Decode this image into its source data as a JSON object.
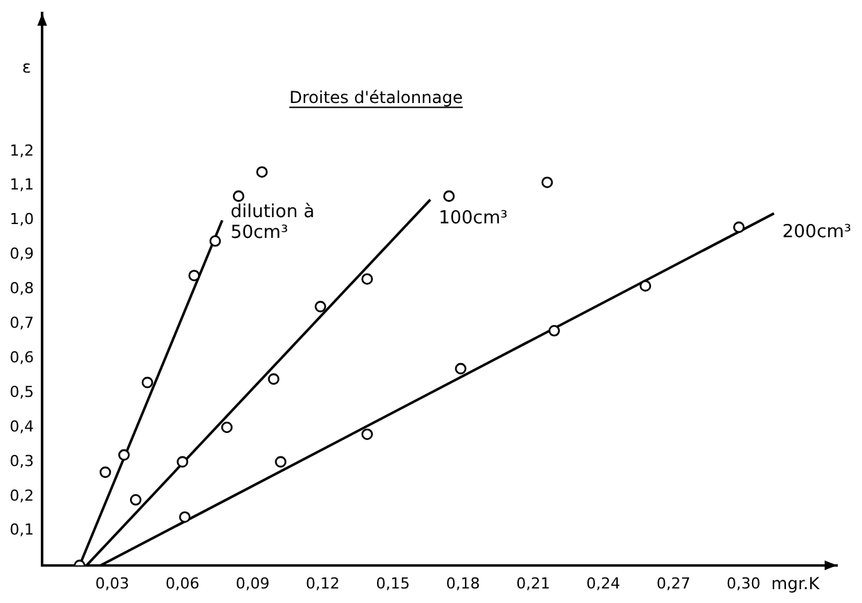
{
  "chart_data": {
    "type": "scatter",
    "title": "Droites d'étalonnage",
    "xlabel": "mgr.K",
    "ylabel": "ε",
    "xlim": [
      0,
      0.34
    ],
    "ylim": [
      0,
      1.6
    ],
    "xticks": [
      {
        "value": 0.03,
        "label": "0,03"
      },
      {
        "value": 0.06,
        "label": "0,06"
      },
      {
        "value": 0.09,
        "label": "0,09"
      },
      {
        "value": 0.12,
        "label": "0,12"
      },
      {
        "value": 0.15,
        "label": "0,15"
      },
      {
        "value": 0.18,
        "label": "0,18"
      },
      {
        "value": 0.21,
        "label": "0,21"
      },
      {
        "value": 0.24,
        "label": "0,24"
      },
      {
        "value": 0.27,
        "label": "0,27"
      },
      {
        "value": 0.3,
        "label": "0,30"
      }
    ],
    "yticks": [
      {
        "value": 0.1,
        "label": "0,1"
      },
      {
        "value": 0.2,
        "label": "0,2"
      },
      {
        "value": 0.3,
        "label": "0,3"
      },
      {
        "value": 0.4,
        "label": "0,4"
      },
      {
        "value": 0.5,
        "label": "0,5"
      },
      {
        "value": 0.6,
        "label": "0,6"
      },
      {
        "value": 0.7,
        "label": "0,7"
      },
      {
        "value": 0.8,
        "label": "0,8"
      },
      {
        "value": 0.9,
        "label": "0,9"
      },
      {
        "value": 1.0,
        "label": "1,0"
      },
      {
        "value": 1.1,
        "label": "1,1"
      },
      {
        "value": 1.2,
        "label": "1,2"
      }
    ],
    "grid": false,
    "legend": false,
    "marker": "circle",
    "series": [
      {
        "color": "#000000",
        "x": [
          0.016,
          0.027,
          0.035,
          0.045,
          0.065,
          0.074,
          0.084,
          0.094
        ],
        "values": [
          0,
          0.27,
          0.32,
          0.53,
          0.84,
          0.94,
          1.07,
          1.14
        ]
      },
      {
        "color": "#000000",
        "x": [
          0.04,
          0.06,
          0.079,
          0.099,
          0.119,
          0.139,
          0.174
        ],
        "values": [
          0.19,
          0.3,
          0.4,
          0.54,
          0.75,
          0.83,
          1.07
        ]
      },
      {
        "color": "#000000",
        "x": [
          0.061,
          0.102,
          0.139,
          0.179,
          0.216,
          0.219,
          0.258,
          0.298
        ],
        "values": [
          0.14,
          0.3,
          0.38,
          0.57,
          1.11,
          0.68,
          0.81,
          0.98
        ]
      },
      {
        "type": "line",
        "name": "dilution à 50cm³",
        "color": "#000000",
        "marker": "none",
        "x": [
          0.016,
          0.077
        ],
        "values": [
          0,
          1.0
        ]
      },
      {
        "type": "line",
        "name": "100cm³",
        "color": "#000000",
        "marker": "none",
        "x": [
          0.019,
          0.166
        ],
        "values": [
          0,
          1.06
        ]
      },
      {
        "type": "line",
        "name": "200cm³",
        "color": "#000000",
        "marker": "none",
        "x": [
          0.025,
          0.313
        ],
        "values": [
          0,
          1.02
        ]
      }
    ]
  }
}
